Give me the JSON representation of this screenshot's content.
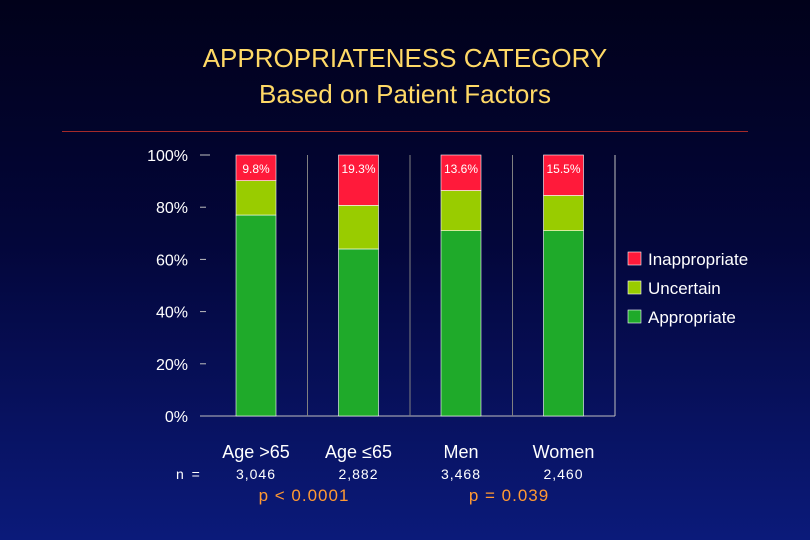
{
  "title": "APPROPRIATENESS CATEGORY",
  "subtitle": "Based on Patient Factors",
  "n_label": "n =",
  "pvalues": [
    "p < 0.0001",
    "p = 0.039"
  ],
  "colors": {
    "title": "#ffd966",
    "inappropriate": "#ff1a3a",
    "uncertain": "#99cc00",
    "appropriate": "#1faa2a",
    "pvalue": "#ff9933"
  },
  "chart_data": {
    "type": "bar",
    "stacked": true,
    "categories": [
      "Age >65",
      "Age ≤65",
      "Men",
      "Women"
    ],
    "n": [
      "3,046",
      "2,882",
      "3,468",
      "2,460"
    ],
    "series": [
      {
        "name": "Appropriate",
        "values": [
          77,
          64,
          71,
          71
        ]
      },
      {
        "name": "Uncertain",
        "values": [
          13.2,
          16.7,
          15.4,
          13.5
        ]
      },
      {
        "name": "Inappropriate",
        "values": [
          9.8,
          19.3,
          13.6,
          15.5
        ]
      }
    ],
    "data_labels": [
      "9.8%",
      "19.3%",
      "13.6%",
      "15.5%"
    ],
    "y_ticks": [
      "100%",
      "80%",
      "60%",
      "40%",
      "20%",
      "0%"
    ],
    "ylim": [
      0,
      100
    ],
    "legend": [
      "Inappropriate",
      "Uncertain",
      "Appropriate"
    ],
    "legend_position": "right"
  }
}
